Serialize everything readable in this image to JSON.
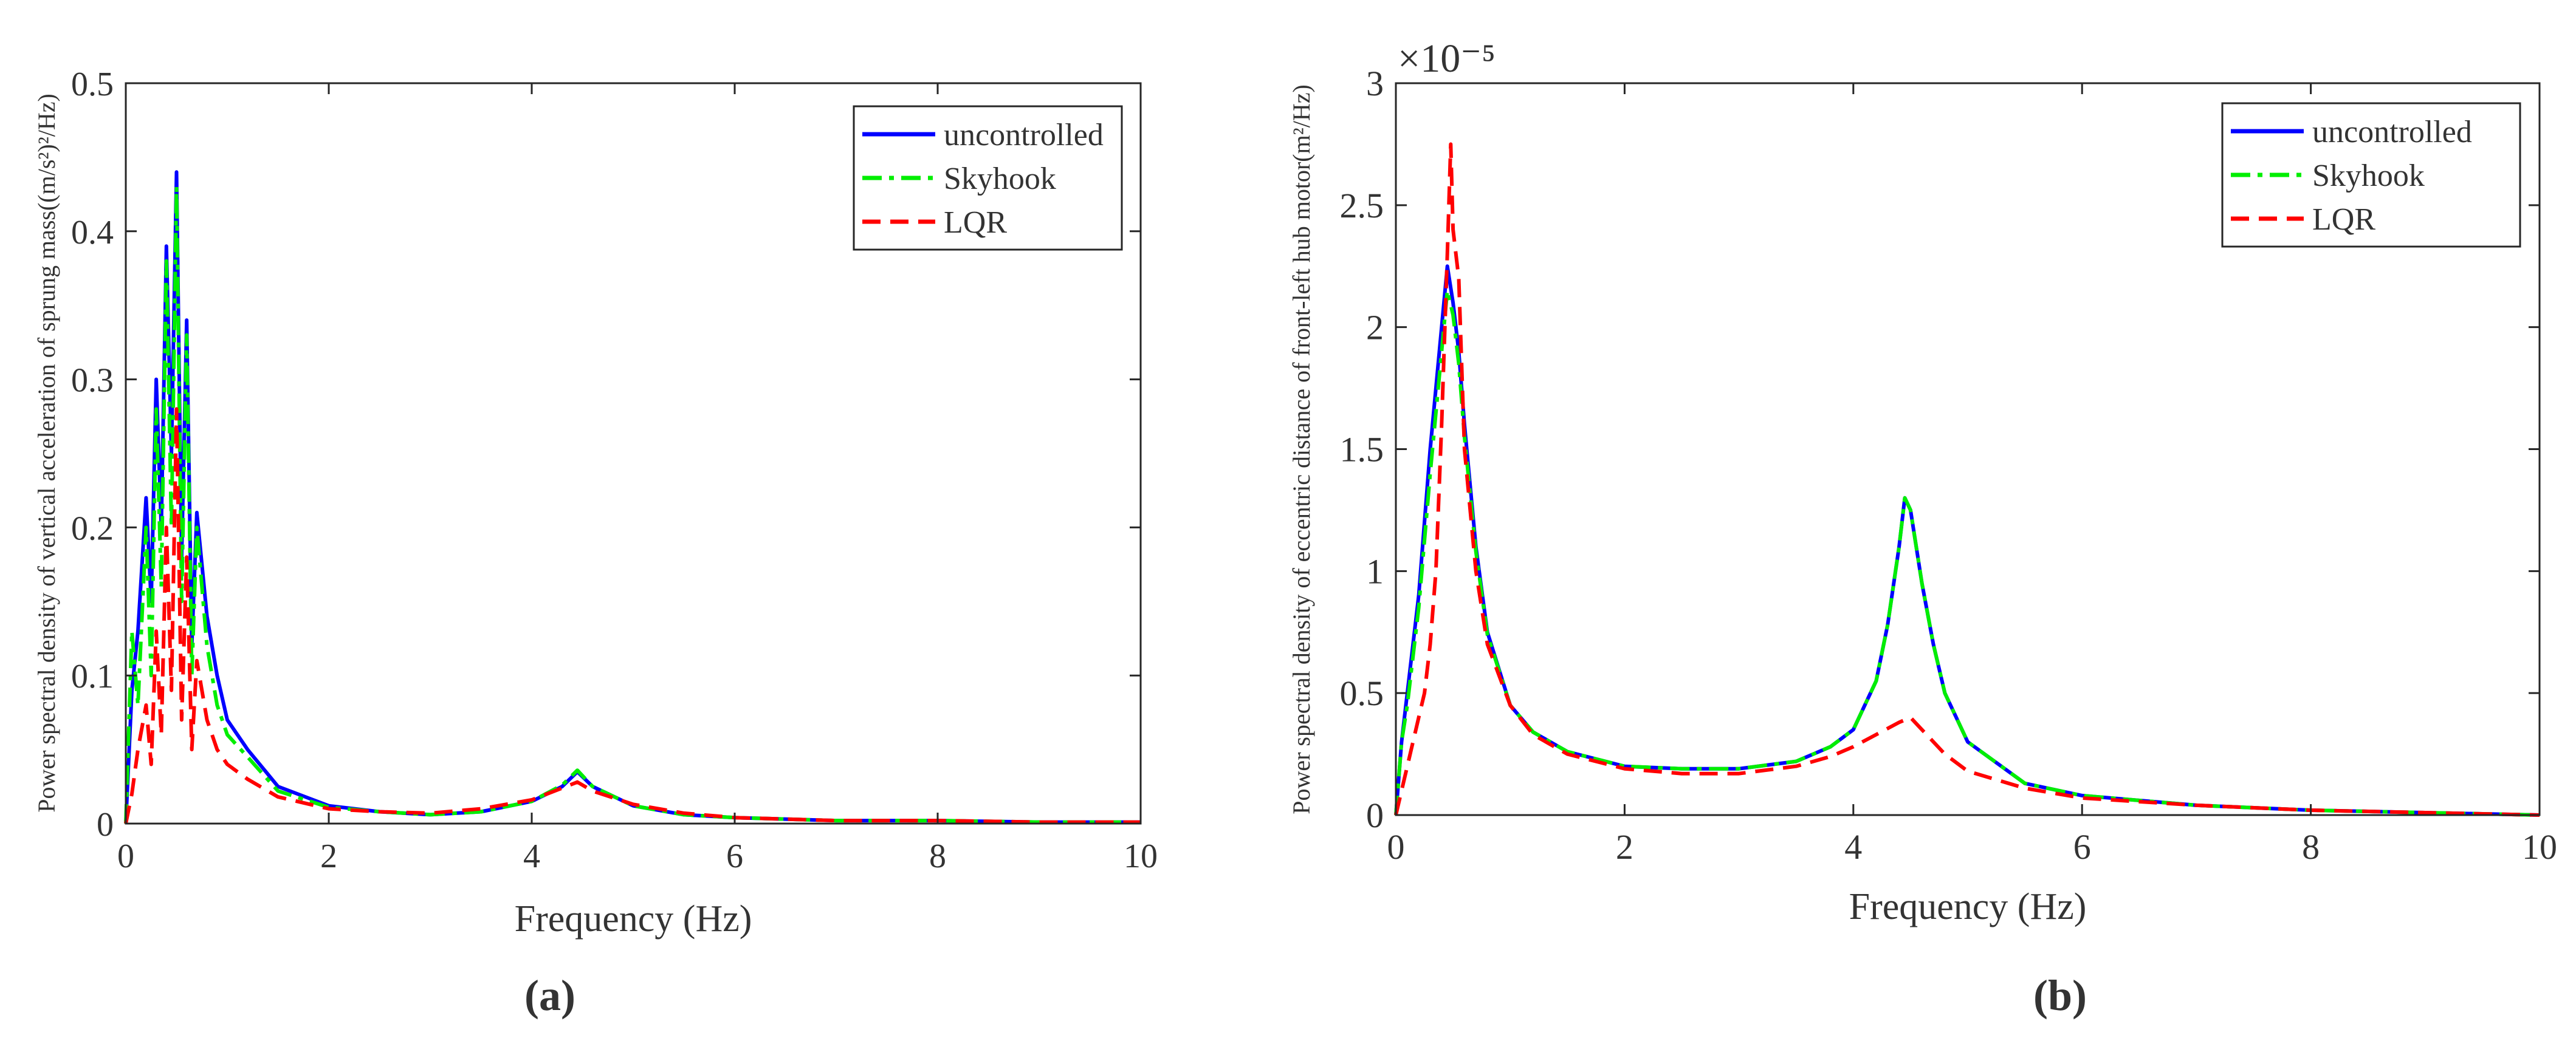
{
  "figure": {
    "panel_labels": [
      "(a)",
      "(b)"
    ]
  },
  "chart_data": [
    {
      "id": "a",
      "type": "line",
      "title": "",
      "panel_label": "(a)",
      "xlabel": "Frequency (Hz)",
      "ylabel": "Power spectral density of vertical acceleration of sprung mass((m/s²)²/Hz)",
      "xlim": [
        0,
        10
      ],
      "ylim": [
        0,
        0.5
      ],
      "x_ticks": [
        "0",
        "2",
        "4",
        "6",
        "8",
        "10"
      ],
      "y_ticks": [
        "0",
        "0.1",
        "0.2",
        "0.3",
        "0.4",
        "0.5"
      ],
      "exponent_label": "",
      "legend_position": "top-right",
      "series": [
        {
          "name": "uncontrolled",
          "color": "#0000ff",
          "style": "solid",
          "x": [
            0,
            0.06,
            0.12,
            0.2,
            0.25,
            0.3,
            0.35,
            0.4,
            0.45,
            0.5,
            0.55,
            0.6,
            0.65,
            0.7,
            0.8,
            0.9,
            1.0,
            1.2,
            1.5,
            2.0,
            2.5,
            3.0,
            3.5,
            4.0,
            4.3,
            4.45,
            4.6,
            5.0,
            5.5,
            6.0,
            7.0,
            8.0,
            9.0,
            10.0
          ],
          "y": [
            0.0,
            0.09,
            0.13,
            0.22,
            0.15,
            0.3,
            0.2,
            0.39,
            0.25,
            0.44,
            0.18,
            0.34,
            0.12,
            0.21,
            0.14,
            0.1,
            0.07,
            0.05,
            0.025,
            0.012,
            0.008,
            0.006,
            0.008,
            0.015,
            0.025,
            0.035,
            0.025,
            0.012,
            0.006,
            0.004,
            0.002,
            0.002,
            0.001,
            0.001
          ]
        },
        {
          "name": "Skyhook",
          "color": "#00ee00",
          "style": "dashdot",
          "x": [
            0,
            0.06,
            0.12,
            0.2,
            0.25,
            0.3,
            0.35,
            0.4,
            0.45,
            0.5,
            0.55,
            0.6,
            0.65,
            0.7,
            0.8,
            0.9,
            1.0,
            1.2,
            1.5,
            2.0,
            2.5,
            3.0,
            3.5,
            4.0,
            4.3,
            4.45,
            4.6,
            5.0,
            5.5,
            6.0,
            7.0,
            8.0,
            9.0,
            10.0
          ],
          "y": [
            0.0,
            0.13,
            0.08,
            0.2,
            0.1,
            0.28,
            0.16,
            0.38,
            0.2,
            0.43,
            0.15,
            0.33,
            0.1,
            0.2,
            0.12,
            0.08,
            0.06,
            0.045,
            0.022,
            0.011,
            0.008,
            0.006,
            0.008,
            0.015,
            0.026,
            0.036,
            0.025,
            0.012,
            0.006,
            0.004,
            0.002,
            0.002,
            0.001,
            0.001
          ]
        },
        {
          "name": "LQR",
          "color": "#ff0000",
          "style": "dashed",
          "x": [
            0,
            0.06,
            0.12,
            0.2,
            0.25,
            0.3,
            0.35,
            0.4,
            0.45,
            0.5,
            0.55,
            0.6,
            0.65,
            0.7,
            0.8,
            0.9,
            1.0,
            1.2,
            1.5,
            2.0,
            2.5,
            3.0,
            3.5,
            4.0,
            4.3,
            4.45,
            4.6,
            5.0,
            5.5,
            6.0,
            7.0,
            8.0,
            9.0,
            10.0
          ],
          "y": [
            0.0,
            0.02,
            0.05,
            0.08,
            0.04,
            0.13,
            0.06,
            0.2,
            0.09,
            0.28,
            0.07,
            0.18,
            0.05,
            0.11,
            0.07,
            0.05,
            0.04,
            0.03,
            0.018,
            0.01,
            0.008,
            0.007,
            0.01,
            0.016,
            0.024,
            0.028,
            0.022,
            0.013,
            0.007,
            0.004,
            0.002,
            0.002,
            0.001,
            0.001
          ]
        }
      ]
    },
    {
      "id": "b",
      "type": "line",
      "title": "",
      "panel_label": "(b)",
      "xlabel": "Frequency (Hz)",
      "ylabel": "Power spectral density of eccentric distance of front-left hub motor(m²/Hz)",
      "xlim": [
        0,
        10
      ],
      "ylim": [
        0,
        3
      ],
      "x_ticks": [
        "0",
        "2",
        "4",
        "6",
        "8",
        "10"
      ],
      "y_ticks": [
        "0",
        "0.5",
        "1",
        "1.5",
        "2",
        "2.5",
        "3"
      ],
      "exponent_label": "×10⁻⁵",
      "legend_position": "top-right",
      "series": [
        {
          "name": "uncontrolled",
          "color": "#0000ff",
          "style": "solid",
          "x": [
            0,
            0.05,
            0.1,
            0.15,
            0.2,
            0.3,
            0.4,
            0.45,
            0.5,
            0.55,
            0.6,
            0.7,
            0.8,
            1.0,
            1.2,
            1.5,
            2.0,
            2.5,
            3.0,
            3.5,
            3.8,
            4.0,
            4.2,
            4.3,
            4.4,
            4.45,
            4.5,
            4.6,
            4.7,
            4.8,
            5.0,
            5.5,
            6.0,
            7.0,
            8.0,
            9.0,
            10.0
          ],
          "y": [
            0.0,
            0.3,
            0.5,
            0.7,
            0.9,
            1.5,
            2.0,
            2.25,
            2.1,
            1.9,
            1.6,
            1.1,
            0.75,
            0.45,
            0.34,
            0.26,
            0.2,
            0.19,
            0.19,
            0.22,
            0.28,
            0.35,
            0.55,
            0.78,
            1.1,
            1.3,
            1.25,
            0.95,
            0.7,
            0.5,
            0.3,
            0.13,
            0.08,
            0.04,
            0.02,
            0.01,
            0.0
          ]
        },
        {
          "name": "Skyhook",
          "color": "#00ee00",
          "style": "dashdot",
          "x": [
            0,
            0.05,
            0.1,
            0.15,
            0.2,
            0.3,
            0.4,
            0.45,
            0.5,
            0.55,
            0.6,
            0.7,
            0.8,
            1.0,
            1.2,
            1.5,
            2.0,
            2.5,
            3.0,
            3.5,
            3.8,
            4.0,
            4.2,
            4.3,
            4.4,
            4.45,
            4.5,
            4.6,
            4.7,
            4.8,
            5.0,
            5.5,
            6.0,
            7.0,
            8.0,
            9.0,
            10.0
          ],
          "y": [
            0.0,
            0.3,
            0.45,
            0.65,
            0.85,
            1.4,
            1.9,
            2.15,
            2.05,
            1.85,
            1.55,
            1.08,
            0.74,
            0.45,
            0.34,
            0.26,
            0.2,
            0.19,
            0.19,
            0.22,
            0.28,
            0.35,
            0.55,
            0.78,
            1.1,
            1.3,
            1.25,
            0.95,
            0.7,
            0.5,
            0.3,
            0.13,
            0.08,
            0.04,
            0.02,
            0.01,
            0.0
          ]
        },
        {
          "name": "LQR",
          "color": "#ff0000",
          "style": "dashed",
          "x": [
            0,
            0.1,
            0.2,
            0.25,
            0.3,
            0.35,
            0.4,
            0.45,
            0.48,
            0.5,
            0.55,
            0.6,
            0.7,
            0.8,
            1.0,
            1.2,
            1.5,
            2.0,
            2.5,
            3.0,
            3.5,
            3.8,
            4.0,
            4.2,
            4.4,
            4.5,
            4.6,
            4.8,
            5.0,
            5.5,
            6.0,
            7.0,
            8.0,
            9.0,
            10.0
          ],
          "y": [
            0.0,
            0.2,
            0.4,
            0.5,
            0.7,
            1.0,
            1.6,
            2.3,
            2.75,
            2.4,
            2.2,
            1.5,
            1.0,
            0.7,
            0.45,
            0.33,
            0.25,
            0.19,
            0.17,
            0.17,
            0.2,
            0.24,
            0.28,
            0.33,
            0.38,
            0.4,
            0.35,
            0.25,
            0.18,
            0.11,
            0.07,
            0.04,
            0.02,
            0.01,
            0.0
          ]
        }
      ]
    }
  ]
}
